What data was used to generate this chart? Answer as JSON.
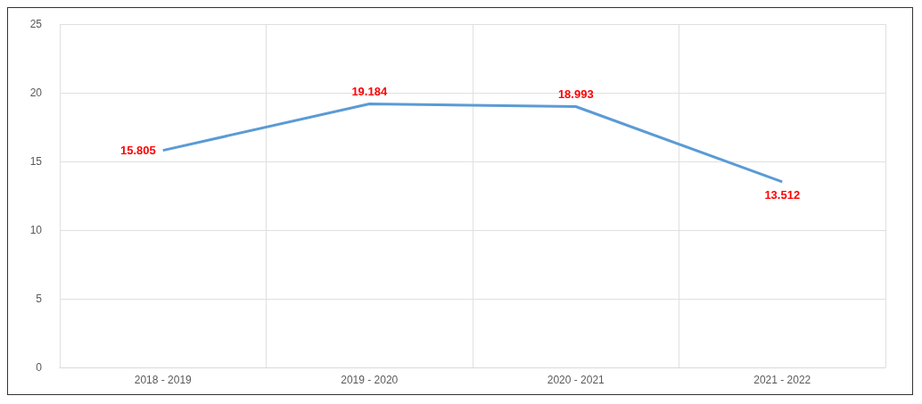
{
  "chart_data": {
    "type": "line",
    "categories": [
      "2018 - 2019",
      "2019 - 2020",
      "2020 - 2021",
      "2021 - 2022"
    ],
    "series": [
      {
        "color": "#5b9bd5",
        "values": [
          15.805,
          19.184,
          18.993,
          13.512
        ]
      }
    ],
    "ylim": [
      0,
      25
    ],
    "yticks": [
      0,
      5,
      10,
      15,
      20,
      25
    ],
    "grid": true,
    "data_labels": true,
    "marker": "none"
  }
}
